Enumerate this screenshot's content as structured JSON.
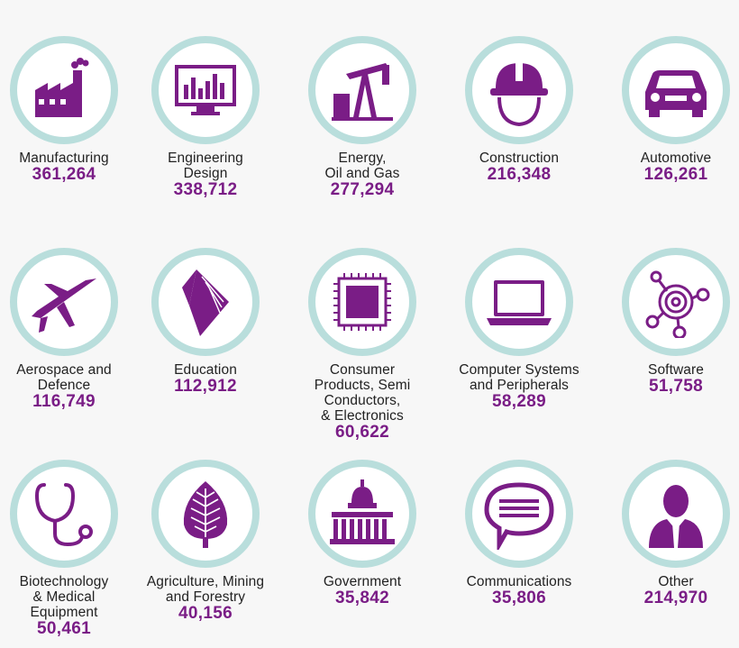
{
  "accent_color": "#7a1d86",
  "ring_color": "#b9dedc",
  "items": [
    {
      "label": "Manufacturing",
      "value": "361,264",
      "icon": "factory-icon"
    },
    {
      "label": "Engineering\nDesign",
      "value": "338,712",
      "icon": "monitor-chart-icon"
    },
    {
      "label": "Energy,\nOil and Gas",
      "value": "277,294",
      "icon": "oil-pump-icon"
    },
    {
      "label": "Construction",
      "value": "216,348",
      "icon": "hard-hat-icon"
    },
    {
      "label": "Automotive",
      "value": "126,261",
      "icon": "car-icon"
    },
    {
      "label": "Aerospace and\nDefence",
      "value": "116,749",
      "icon": "jet-icon"
    },
    {
      "label": "Education",
      "value": "112,912",
      "icon": "book-icon"
    },
    {
      "label": "Consumer\nProducts, Semi\nConductors,\n& Electronics",
      "value": "60,622",
      "icon": "chip-icon"
    },
    {
      "label": "Computer Systems\nand Peripherals",
      "value": "58,289",
      "icon": "laptop-icon"
    },
    {
      "label": "Software",
      "value": "51,758",
      "icon": "network-target-icon"
    },
    {
      "label": "Biotechnology\n& Medical\nEquipment",
      "value": "50,461",
      "icon": "stethoscope-icon"
    },
    {
      "label": "Agriculture, Mining\nand Forestry",
      "value": "40,156",
      "icon": "leaf-icon"
    },
    {
      "label": "Government",
      "value": "35,842",
      "icon": "capitol-icon"
    },
    {
      "label": "Communications",
      "value": "35,806",
      "icon": "speech-bubble-icon"
    },
    {
      "label": "Other",
      "value": "214,970",
      "icon": "person-icon"
    }
  ]
}
